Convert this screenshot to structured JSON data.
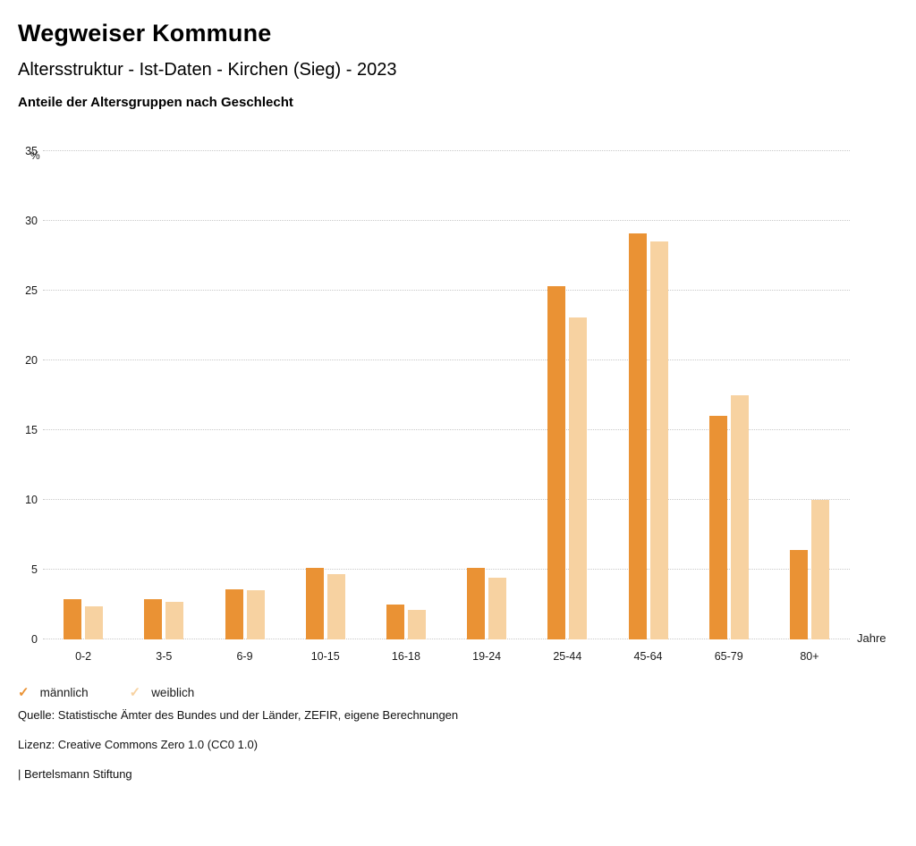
{
  "header": {
    "title": "Wegweiser Kommune",
    "subtitle": "Altersstruktur - Ist-Daten - Kirchen (Sieg) - 2023",
    "heading": "Anteile der Altersgruppen nach Geschlecht"
  },
  "chart_data": {
    "type": "bar",
    "title": "Anteile der Altersgruppen nach Geschlecht",
    "categories": [
      "0-2",
      "3-5",
      "6-9",
      "10-15",
      "16-18",
      "19-24",
      "25-44",
      "45-64",
      "65-79",
      "80+"
    ],
    "series": [
      {
        "name": "männlich",
        "color": "#EA9234",
        "values": [
          2.9,
          2.9,
          3.6,
          5.1,
          2.5,
          5.1,
          25.3,
          29.1,
          16.0,
          6.4
        ]
      },
      {
        "name": "weiblich",
        "color": "#F7D2A1",
        "values": [
          2.4,
          2.7,
          3.5,
          4.7,
          2.1,
          4.4,
          23.1,
          28.5,
          17.5,
          10.0
        ]
      }
    ],
    "xlabel": "Jahre",
    "ylabel": "%",
    "ylim": [
      0,
      35
    ],
    "ytick_step": 5,
    "grid": true,
    "grid_style": "dotted",
    "legend_position": "bottom-left"
  },
  "legend": {
    "items": [
      {
        "label": "männlich",
        "color": "#EA9234",
        "marker": "✓"
      },
      {
        "label": "weiblich",
        "color": "#F7D2A1",
        "marker": "✓"
      }
    ]
  },
  "footer": {
    "source": "Quelle: Statistische Ämter des Bundes und der Länder, ZEFIR, eigene Berechnungen",
    "license": "Lizenz: Creative Commons Zero 1.0 (CC0 1.0)",
    "attribution": "| Bertelsmann Stiftung"
  }
}
